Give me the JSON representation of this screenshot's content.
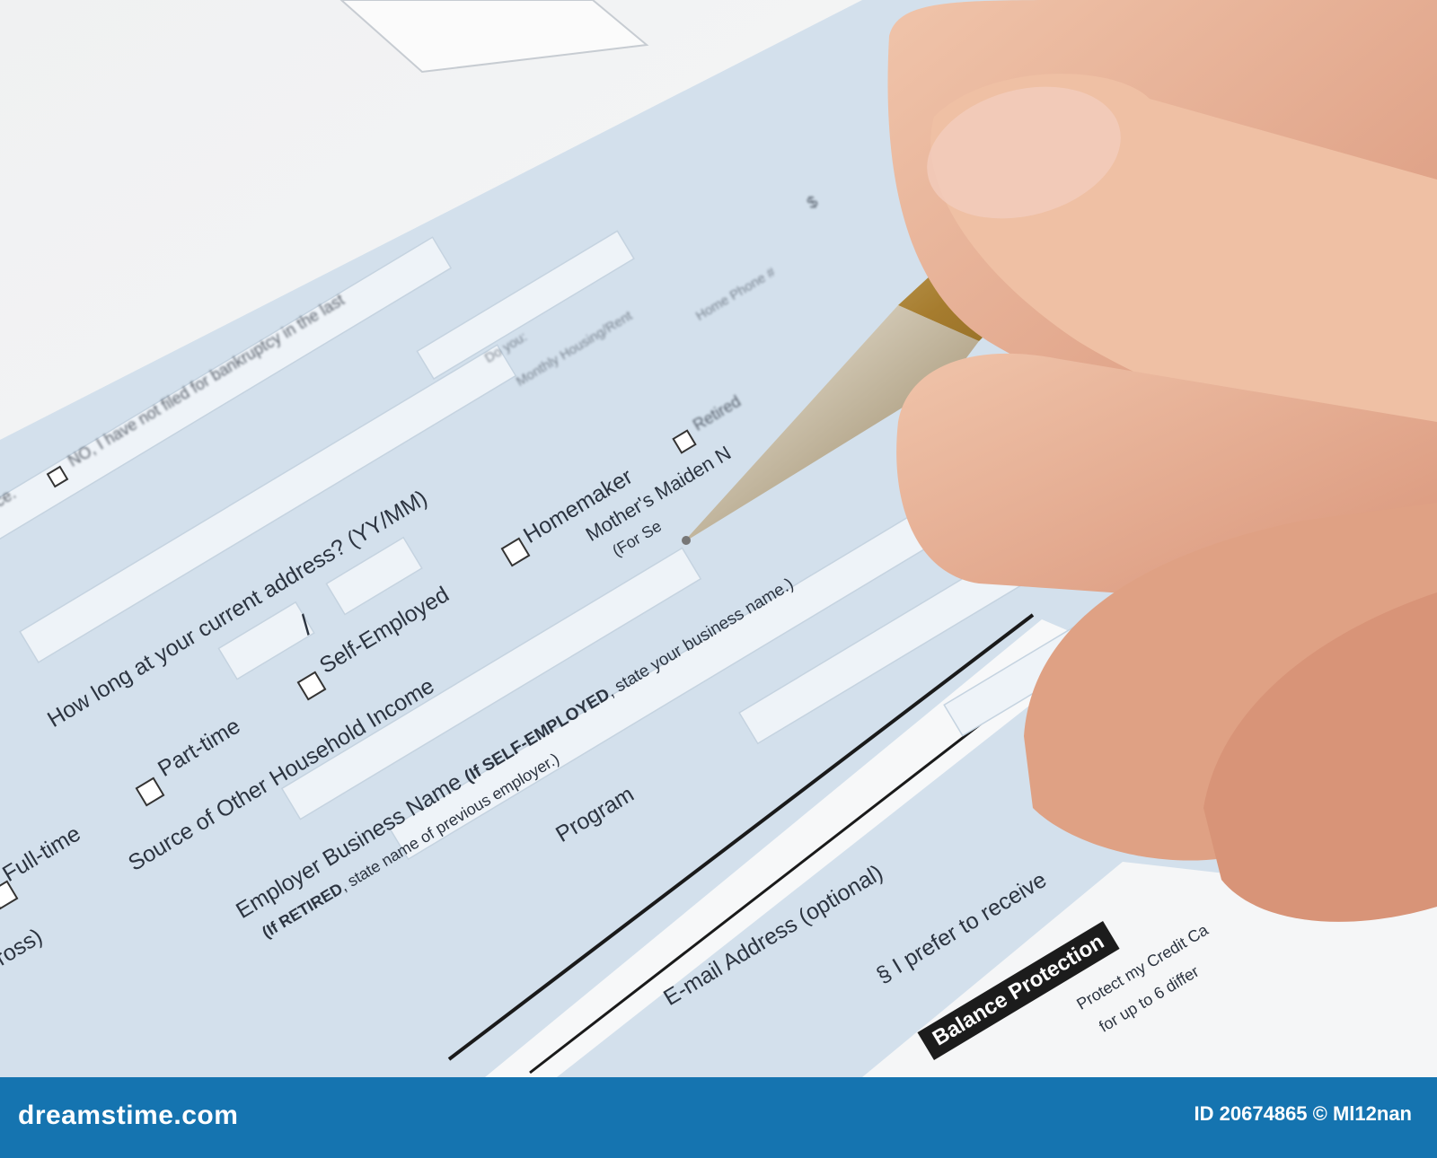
{
  "form": {
    "address_question": "How long at your current address? (YY/MM)",
    "slash": "/",
    "employment_options": [
      "Full-time",
      "Part-time",
      "Self-Employed",
      "Homemaker",
      "Retired"
    ],
    "other_income_label": "Source of Other Household Income",
    "employer_label_prefix": "Employer Business Name ",
    "employer_label_bold": "(If SELF-EMPLOYED",
    "employer_label_suffix": ", state your business name.)",
    "retired_note_bold": "(If RETIRED",
    "retired_note_suffix": ", state name of previous employer.)",
    "program_label": "Program",
    "email_label": "E-mail Address (optional)",
    "prefer_label": "§ I prefer to receive",
    "mothers_maiden_label": "Mother's Maiden N",
    "for_security_label": "(For Se",
    "bankruptcy_label": "NO, I have not filed for bankruptcy in the last",
    "partial_ce": "ce.",
    "do_you_label": "Do you:",
    "housing_label": "Monthly Housing/Rent",
    "home_phone_label": "Home Phone #",
    "gross_label": "(Gross)",
    "balance_protection_label": "Balance Protection",
    "protect_label": "Protect my Credit Ca",
    "up_to_label": "for up to 6 differ",
    "dollar_sign": "$"
  },
  "footer": {
    "site": "dreamstime.com",
    "image_id": "ID 20674865 © Ml12nan"
  },
  "colors": {
    "form_blue": "#d3e0ec",
    "footer_blue": "#1574b0",
    "skin": "#e8b49a",
    "pen_gold": "#b8923e"
  }
}
